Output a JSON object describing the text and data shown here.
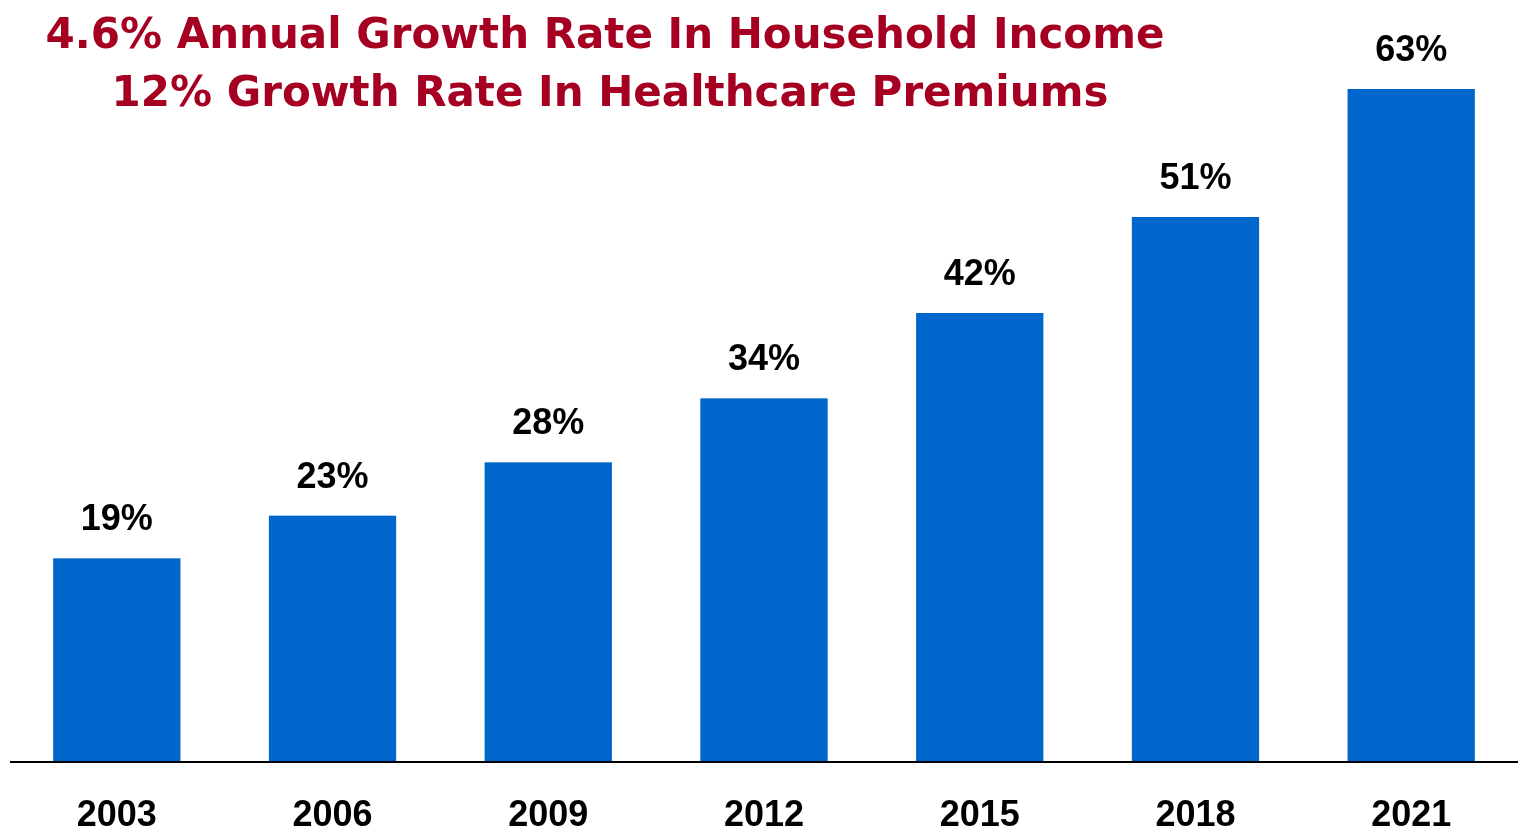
{
  "chart_data": {
    "type": "bar",
    "title": "4.6% Annual Growth Rate In Household Income",
    "subtitle": "12% Growth Rate In Healthcare Premiums",
    "categories": [
      "2003",
      "2006",
      "2009",
      "2012",
      "2015",
      "2018",
      "2021"
    ],
    "values": [
      19,
      23,
      28,
      34,
      42,
      51,
      63
    ],
    "value_labels": [
      "19%",
      "23%",
      "28%",
      "34%",
      "42%",
      "51%",
      "63%"
    ],
    "color": "#0066cc"
  }
}
